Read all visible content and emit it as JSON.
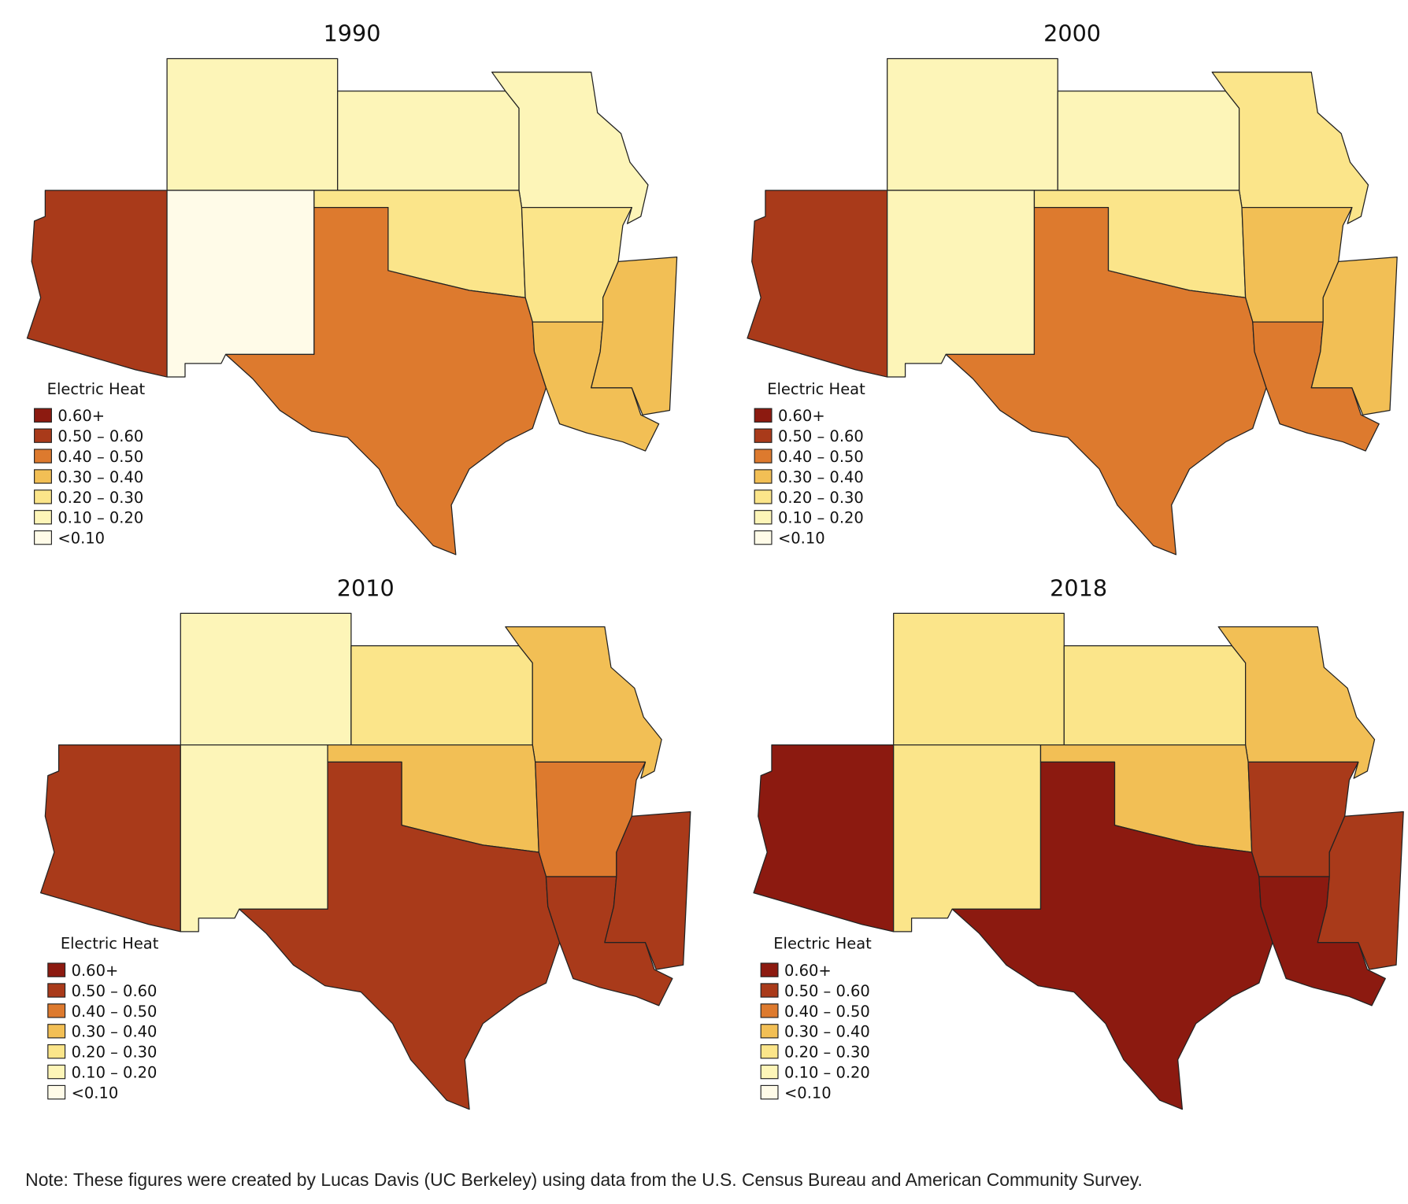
{
  "legend": {
    "title": "Electric Heat",
    "classes": [
      {
        "label": "0.60+",
        "color": "#8c1a10"
      },
      {
        "label": "0.50 – 0.60",
        "color": "#a93a1a"
      },
      {
        "label": "0.40 – 0.50",
        "color": "#dd7a2e"
      },
      {
        "label": "0.30 – 0.40",
        "color": "#f2bf55"
      },
      {
        "label": "0.20 – 0.30",
        "color": "#fbe58a"
      },
      {
        "label": "0.10 – 0.20",
        "color": "#fdf5b8"
      },
      {
        "label": "<0.10",
        "color": "#fffbe8"
      }
    ]
  },
  "maps": [
    {
      "title": "1990",
      "states": {
        "Colorado": "0.10 – 0.20",
        "Kansas": "0.10 – 0.20",
        "Missouri": "0.10 – 0.20",
        "Arizona": "0.50 – 0.60",
        "New Mexico": "<0.10",
        "Oklahoma": "0.20 – 0.30",
        "Arkansas": "0.20 – 0.30",
        "Texas": "0.40 – 0.50",
        "Louisiana": "0.30 – 0.40",
        "Mississippi": "0.30 – 0.40"
      }
    },
    {
      "title": "2000",
      "states": {
        "Colorado": "0.10 – 0.20",
        "Kansas": "0.10 – 0.20",
        "Missouri": "0.20 – 0.30",
        "Arizona": "0.50 – 0.60",
        "New Mexico": "0.10 – 0.20",
        "Oklahoma": "0.20 – 0.30",
        "Arkansas": "0.30 – 0.40",
        "Texas": "0.40 – 0.50",
        "Louisiana": "0.40 – 0.50",
        "Mississippi": "0.30 – 0.40"
      }
    },
    {
      "title": "2010",
      "states": {
        "Colorado": "0.10 – 0.20",
        "Kansas": "0.20 – 0.30",
        "Missouri": "0.30 – 0.40",
        "Arizona": "0.50 – 0.60",
        "New Mexico": "0.10 – 0.20",
        "Oklahoma": "0.30 – 0.40",
        "Arkansas": "0.40 – 0.50",
        "Texas": "0.50 – 0.60",
        "Louisiana": "0.50 – 0.60",
        "Mississippi": "0.50 – 0.60"
      }
    },
    {
      "title": "2018",
      "states": {
        "Colorado": "0.20 – 0.30",
        "Kansas": "0.20 – 0.30",
        "Missouri": "0.30 – 0.40",
        "Arizona": "0.60+",
        "New Mexico": "0.20 – 0.30",
        "Oklahoma": "0.30 – 0.40",
        "Arkansas": "0.50 – 0.60",
        "Texas": "0.60+",
        "Louisiana": "0.60+",
        "Mississippi": "0.50 – 0.60"
      }
    }
  ],
  "note": "Note: These figures were created by Lucas Davis (UC Berkeley) using data from the U.S. Census Bureau and American Community Survey."
}
